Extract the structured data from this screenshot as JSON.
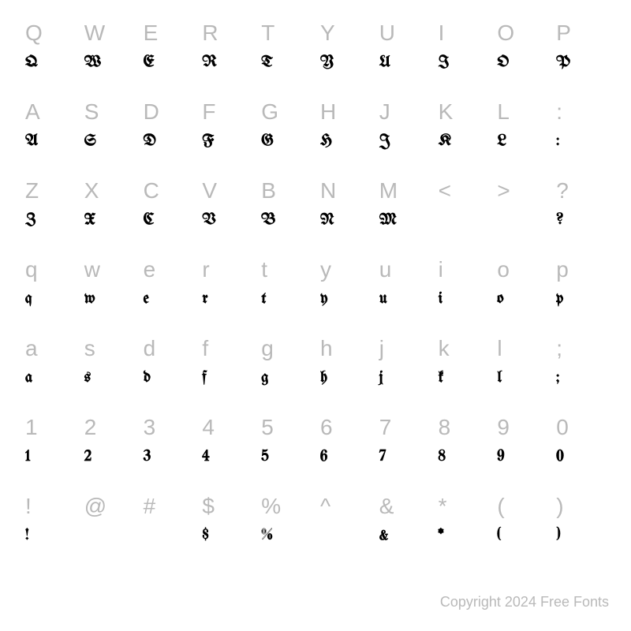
{
  "background_color": "#ffffff",
  "reference_color": "#b9b9b9",
  "glyph_color": "#000000",
  "reference_fontsize": 28,
  "glyph_fontsize": 20,
  "columns": 10,
  "rows": 7,
  "copyright": "Copyright 2024 Free Fonts",
  "chart": [
    {
      "ref": "Q",
      "glyph": "Q"
    },
    {
      "ref": "W",
      "glyph": "W"
    },
    {
      "ref": "E",
      "glyph": "E"
    },
    {
      "ref": "R",
      "glyph": "R"
    },
    {
      "ref": "T",
      "glyph": "T"
    },
    {
      "ref": "Y",
      "glyph": "Y"
    },
    {
      "ref": "U",
      "glyph": "U"
    },
    {
      "ref": "I",
      "glyph": "I"
    },
    {
      "ref": "O",
      "glyph": "O"
    },
    {
      "ref": "P",
      "glyph": "P"
    },
    {
      "ref": "A",
      "glyph": "A"
    },
    {
      "ref": "S",
      "glyph": "S"
    },
    {
      "ref": "D",
      "glyph": "D"
    },
    {
      "ref": "F",
      "glyph": "F"
    },
    {
      "ref": "G",
      "glyph": "G"
    },
    {
      "ref": "H",
      "glyph": "H"
    },
    {
      "ref": "J",
      "glyph": "J"
    },
    {
      "ref": "K",
      "glyph": "K"
    },
    {
      "ref": "L",
      "glyph": "L"
    },
    {
      "ref": ":",
      "glyph": ":"
    },
    {
      "ref": "Z",
      "glyph": "Z"
    },
    {
      "ref": "X",
      "glyph": "X"
    },
    {
      "ref": "C",
      "glyph": "C"
    },
    {
      "ref": "V",
      "glyph": "V"
    },
    {
      "ref": "B",
      "glyph": "B"
    },
    {
      "ref": "N",
      "glyph": "N"
    },
    {
      "ref": "M",
      "glyph": "M"
    },
    {
      "ref": "<",
      "glyph": ""
    },
    {
      "ref": ">",
      "glyph": ""
    },
    {
      "ref": "?",
      "glyph": "?"
    },
    {
      "ref": "q",
      "glyph": "q"
    },
    {
      "ref": "w",
      "glyph": "w"
    },
    {
      "ref": "e",
      "glyph": "e"
    },
    {
      "ref": "r",
      "glyph": "r"
    },
    {
      "ref": "t",
      "glyph": "t"
    },
    {
      "ref": "y",
      "glyph": "y"
    },
    {
      "ref": "u",
      "glyph": "u"
    },
    {
      "ref": "i",
      "glyph": "i"
    },
    {
      "ref": "o",
      "glyph": "o"
    },
    {
      "ref": "p",
      "glyph": "p"
    },
    {
      "ref": "a",
      "glyph": "a"
    },
    {
      "ref": "s",
      "glyph": "s"
    },
    {
      "ref": "d",
      "glyph": "d"
    },
    {
      "ref": "f",
      "glyph": "f"
    },
    {
      "ref": "g",
      "glyph": "g"
    },
    {
      "ref": "h",
      "glyph": "h"
    },
    {
      "ref": "j",
      "glyph": "j"
    },
    {
      "ref": "k",
      "glyph": "k"
    },
    {
      "ref": "l",
      "glyph": "l"
    },
    {
      "ref": ";",
      "glyph": ";"
    },
    {
      "ref": "1",
      "glyph": "1"
    },
    {
      "ref": "2",
      "glyph": "2"
    },
    {
      "ref": "3",
      "glyph": "3"
    },
    {
      "ref": "4",
      "glyph": "4"
    },
    {
      "ref": "5",
      "glyph": "5"
    },
    {
      "ref": "6",
      "glyph": "6"
    },
    {
      "ref": "7",
      "glyph": "7"
    },
    {
      "ref": "8",
      "glyph": "8"
    },
    {
      "ref": "9",
      "glyph": "9"
    },
    {
      "ref": "0",
      "glyph": "0"
    },
    {
      "ref": "!",
      "glyph": "!"
    },
    {
      "ref": "@",
      "glyph": ""
    },
    {
      "ref": "#",
      "glyph": ""
    },
    {
      "ref": "$",
      "glyph": "$"
    },
    {
      "ref": "%",
      "glyph": "%"
    },
    {
      "ref": "^",
      "glyph": ""
    },
    {
      "ref": "&",
      "glyph": "&"
    },
    {
      "ref": "*",
      "glyph": "*"
    },
    {
      "ref": "(",
      "glyph": "("
    },
    {
      "ref": ")",
      "glyph": ")"
    }
  ]
}
